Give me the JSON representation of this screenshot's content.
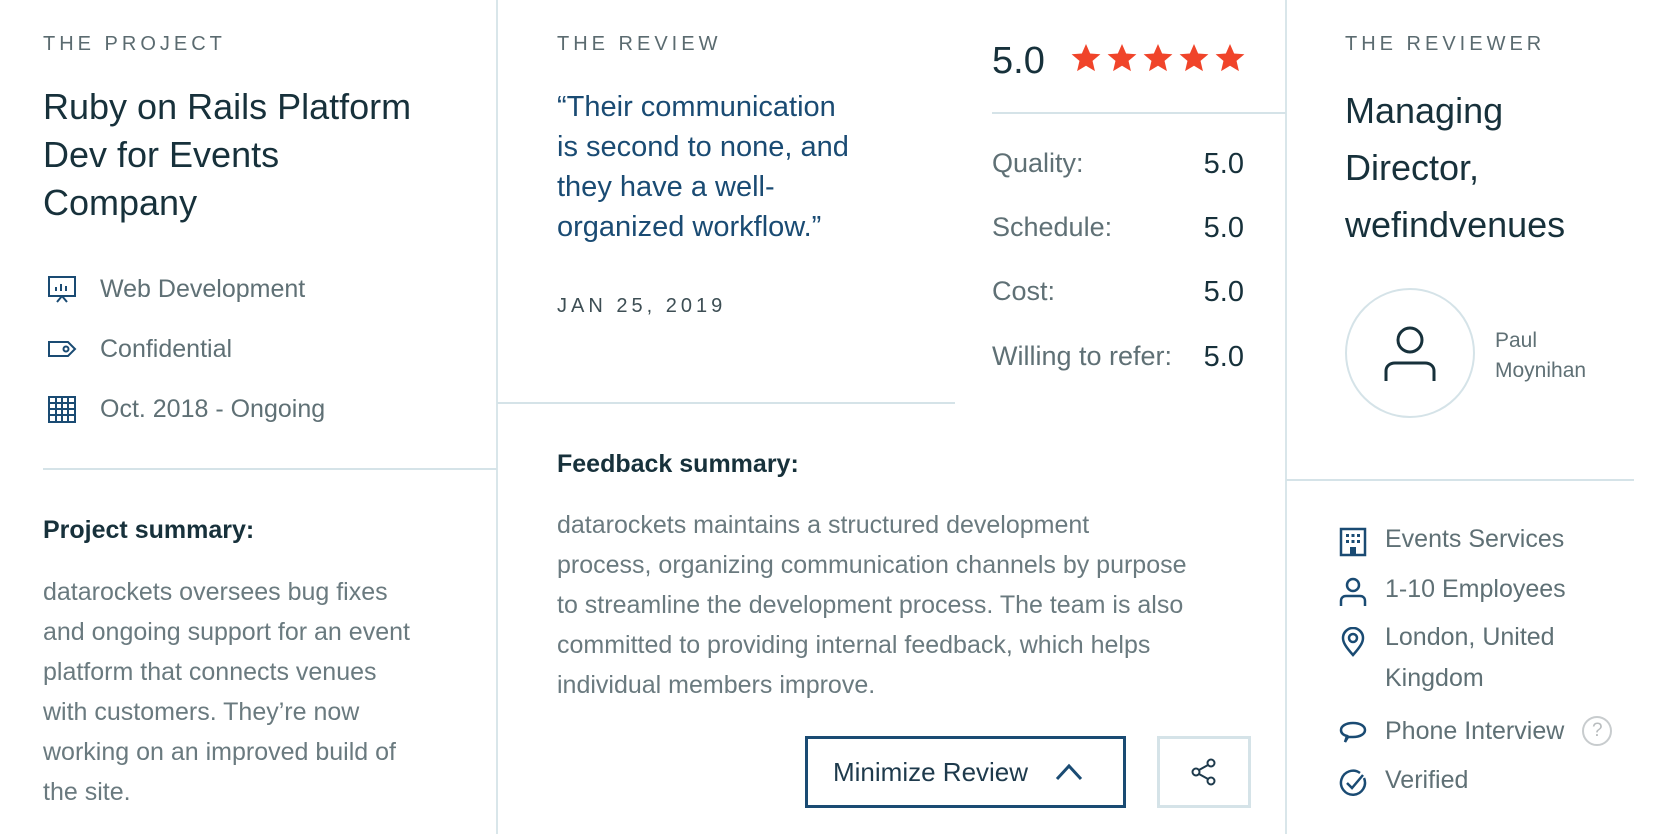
{
  "project": {
    "eyebrow": "THE PROJECT",
    "title_lines": [
      "Ruby on Rails Platform",
      "Dev for Events",
      "Company"
    ],
    "meta": [
      {
        "icon": "presentation-chart-icon",
        "label": "Web Development"
      },
      {
        "icon": "tag-icon",
        "label": "Confidential"
      },
      {
        "icon": "calendar-icon",
        "label": "Oct. 2018 - Ongoing"
      }
    ],
    "summary_heading": "Project summary:",
    "summary_lines": [
      "datarockets oversees bug fixes",
      "and ongoing support for an event",
      "platform that connects venues",
      "with customers. They’re now",
      "working on an improved build of",
      "the site."
    ]
  },
  "review": {
    "eyebrow": "THE REVIEW",
    "quote_lines": [
      "“Their communication",
      "is second to none, and",
      "they have a well-",
      "organized workflow.”"
    ],
    "date": "JAN 25, 2019",
    "overall": "5.0",
    "stars": 5,
    "star_color": "#f0442a",
    "scores": [
      {
        "label": "Quality:",
        "value": "5.0"
      },
      {
        "label": "Schedule:",
        "value": "5.0"
      },
      {
        "label": "Cost:",
        "value": "5.0"
      },
      {
        "label": "Willing to refer:",
        "value": "5.0"
      }
    ],
    "feedback_heading": "Feedback summary:",
    "feedback_lines": [
      "datarockets maintains a structured development",
      "process, organizing communication channels by purpose",
      "to streamline the development process. The team is also",
      "committed to providing internal feedback, which helps",
      "individual members improve."
    ],
    "minimize_label": "Minimize Review",
    "accent": "#1a4b73"
  },
  "reviewer": {
    "eyebrow": "THE REVIEWER",
    "title_lines": [
      "Managing",
      "Director,",
      "wefindvenues"
    ],
    "name_lines": [
      "Paul",
      "Moynihan"
    ],
    "details": [
      {
        "icon": "building-icon",
        "label": "Events Services"
      },
      {
        "icon": "user-icon",
        "label": "1-10 Employees"
      },
      {
        "icon": "location-pin-icon",
        "label": "London, United",
        "label2": "Kingdom"
      },
      {
        "icon": "chat-bubble-icon",
        "label": "Phone Interview"
      },
      {
        "icon": "check-circle-icon",
        "label": "Verified"
      }
    ]
  }
}
